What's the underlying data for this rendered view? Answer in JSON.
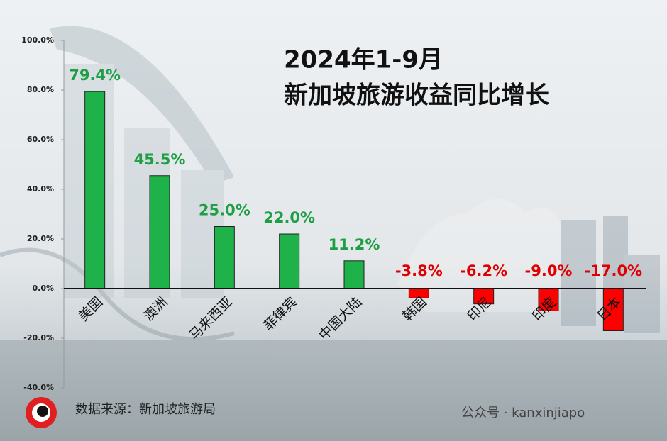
{
  "chart_data": {
    "type": "bar",
    "title": [
      "2024年1-9月",
      "新加坡旅游收益同比增长"
    ],
    "categories": [
      "美国",
      "澳洲",
      "马来西亚",
      "菲律宾",
      "中国大陆",
      "韩国",
      "印尼",
      "印度",
      "日本"
    ],
    "values": [
      79.4,
      45.5,
      25.0,
      22.0,
      11.2,
      -3.8,
      -6.2,
      -9.0,
      -17.0
    ],
    "value_labels": [
      "79.4%",
      "45.5%",
      "25.0%",
      "22.0%",
      "11.2%",
      "-3.8%",
      "-6.2%",
      "-9.0%",
      "-17.0%"
    ],
    "positive_color": "#1fb14a",
    "negative_color": "#ff0000",
    "ylim": [
      -40,
      100
    ],
    "yticks": [
      {
        "value": -40,
        "label": "-40.0%"
      },
      {
        "value": -20,
        "label": "-20.0%"
      },
      {
        "value": 0,
        "label": "0.0%"
      },
      {
        "value": 20,
        "label": "20.0%"
      },
      {
        "value": 40,
        "label": "40.0%"
      },
      {
        "value": 60,
        "label": "60.0%"
      },
      {
        "value": 80,
        "label": "80.0%"
      },
      {
        "value": 100,
        "label": "100.0%"
      }
    ],
    "source": "数据来源：新加坡旅游局",
    "watermark": "公众号 · kanxinjiapo"
  }
}
